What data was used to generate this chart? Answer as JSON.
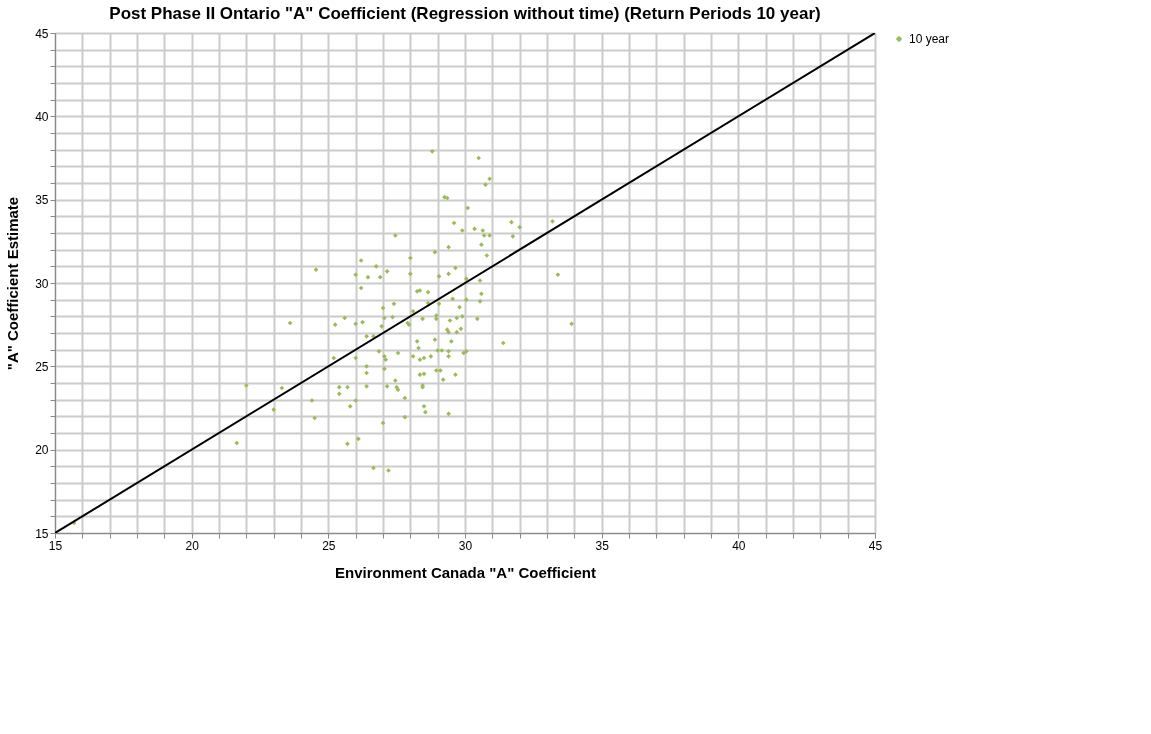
{
  "chart_data": {
    "type": "scatter",
    "title": "Post Phase II Ontario \"A\" Coefficient (Regression without time) (Return Periods 10 year)",
    "xlabel": "Environment Canada \"A\" Coefficient",
    "ylabel": "\"A\" Coefficient Estimate",
    "xlim": [
      15,
      45
    ],
    "ylim": [
      15,
      45
    ],
    "xticks": [
      15,
      {
        "value": 16,
        "label": null
      },
      {
        "value": 17,
        "label": null
      },
      {
        "value": 18,
        "label": null
      },
      {
        "value": 19,
        "label": null
      },
      20,
      {
        "value": 21,
        "label": null
      },
      {
        "value": 22,
        "label": null
      },
      {
        "value": 23,
        "label": null
      },
      {
        "value": 24,
        "label": null
      },
      25,
      {
        "value": 26,
        "label": null
      },
      {
        "value": 27,
        "label": null
      },
      {
        "value": 28,
        "label": null
      },
      {
        "value": 29,
        "label": null
      },
      30,
      {
        "value": 31,
        "label": null
      },
      {
        "value": 32,
        "label": null
      },
      {
        "value": 33,
        "label": null
      },
      {
        "value": 34,
        "label": null
      },
      35,
      {
        "value": 36,
        "label": null
      },
      {
        "value": 37,
        "label": null
      },
      {
        "value": 38,
        "label": null
      },
      {
        "value": 39,
        "label": null
      },
      40,
      {
        "value": 41,
        "label": null
      },
      {
        "value": 42,
        "label": null
      },
      {
        "value": 43,
        "label": null
      },
      {
        "value": 44,
        "label": null
      },
      45
    ],
    "yticks": [
      15,
      {
        "value": 16,
        "label": null
      },
      {
        "value": 17,
        "label": null
      },
      {
        "value": 18,
        "label": null
      },
      {
        "value": 19,
        "label": null
      },
      20,
      {
        "value": 21,
        "label": null
      },
      {
        "value": 22,
        "label": null
      },
      {
        "value": 23,
        "label": null
      },
      {
        "value": 24,
        "label": null
      },
      25,
      {
        "value": 26,
        "label": null
      },
      {
        "value": 27,
        "label": null
      },
      {
        "value": 28,
        "label": null
      },
      {
        "value": 29,
        "label": null
      },
      30,
      {
        "value": 31,
        "label": null
      },
      {
        "value": 32,
        "label": null
      },
      {
        "value": 33,
        "label": null
      },
      {
        "value": 34,
        "label": null
      },
      35,
      {
        "value": 36,
        "label": null
      },
      {
        "value": 37,
        "label": null
      },
      {
        "value": 38,
        "label": null
      },
      {
        "value": 39,
        "label": null
      },
      40,
      {
        "value": 41,
        "label": null
      },
      {
        "value": 42,
        "label": null
      },
      {
        "value": 43,
        "label": null
      },
      {
        "value": 44,
        "label": null
      },
      45
    ],
    "grid": true,
    "legend": "right",
    "marker": "diamond",
    "series": [
      {
        "name": "10 year",
        "color": "#9bbb59",
        "x": [
          15.7,
          21.65,
          22.0,
          23.0,
          23.3,
          24.4,
          24.5,
          25.2,
          25.4,
          25.7,
          25.4,
          26.0,
          26.4,
          25.8,
          26.0,
          25.7,
          26.1,
          26.65,
          27.2,
          26.85,
          27.05,
          27.1,
          27.55,
          26.4,
          26.4,
          27.05,
          27.45,
          27.15,
          27.5,
          27.55,
          27.8,
          26.4,
          27.0,
          27.8,
          26.65,
          28.25,
          28.9,
          28.3,
          28.1,
          28.35,
          28.5,
          28.75,
          29.0,
          29.15,
          29.4,
          29.4,
          29.5,
          29.4,
          29.7,
          29.95,
          30.05,
          28.35,
          28.5,
          28.95,
          29.1,
          29.65,
          29.2,
          28.45,
          28.45,
          28.5,
          28.55,
          29.4,
          31.4,
          28.8,
          30.5,
          30.9,
          30.75,
          29.25,
          29.35,
          30.1,
          29.6,
          29.9,
          30.35,
          30.65,
          30.7,
          30.9,
          31.7,
          32.0,
          31.75,
          33.2,
          27.45,
          30.6,
          29.4,
          28.9,
          30.8,
          26.2,
          28.0,
          26.75,
          27.15,
          24.55,
          26.0,
          26.45,
          26.9,
          28.0,
          29.05,
          29.4,
          29.65,
          30.55,
          30.05,
          33.4,
          26.2,
          28.25,
          28.35,
          28.65,
          30.6,
          30.55,
          28.65,
          29.05,
          29.55,
          30.05,
          29.8,
          27.4,
          27.0,
          28.1,
          25.6,
          25.25,
          23.6,
          26.0,
          26.25,
          27.05,
          27.35,
          27.9,
          27.95,
          28.45,
          28.95,
          28.95,
          29.45,
          29.7,
          29.9,
          30.45,
          33.9,
          29.35,
          29.85,
          26.95
        ],
        "values": [
          15.6,
          20.4,
          23.85,
          22.4,
          23.7,
          22.95,
          21.9,
          25.5,
          23.75,
          23.75,
          23.35,
          25.5,
          26.8,
          22.6,
          22.95,
          20.35,
          20.65,
          18.9,
          18.75,
          25.9,
          25.6,
          25.4,
          25.8,
          25.0,
          24.6,
          24.85,
          24.15,
          23.8,
          23.75,
          23.6,
          23.1,
          23.8,
          21.6,
          21.95,
          26.8,
          26.5,
          26.6,
          26.1,
          25.6,
          25.4,
          25.5,
          25.6,
          25.95,
          25.95,
          25.9,
          25.6,
          26.5,
          27.05,
          27.05,
          25.8,
          25.9,
          24.5,
          24.55,
          24.75,
          24.75,
          24.5,
          24.2,
          23.85,
          23.75,
          22.6,
          22.25,
          22.15,
          26.4,
          37.9,
          37.5,
          36.25,
          35.9,
          35.15,
          35.1,
          34.5,
          33.6,
          33.15,
          33.25,
          33.15,
          32.85,
          32.85,
          33.65,
          33.35,
          32.8,
          33.7,
          32.85,
          32.3,
          32.15,
          31.85,
          31.65,
          31.35,
          31.5,
          31.0,
          30.7,
          30.8,
          30.5,
          30.35,
          30.35,
          30.55,
          30.4,
          30.55,
          30.9,
          30.15,
          30.25,
          30.5,
          29.7,
          29.5,
          29.55,
          29.45,
          29.35,
          28.9,
          28.8,
          28.75,
          29.05,
          29.0,
          28.55,
          28.75,
          28.5,
          28.3,
          27.9,
          27.5,
          27.6,
          27.55,
          27.65,
          27.9,
          27.95,
          27.6,
          27.5,
          27.85,
          28.05,
          27.85,
          27.75,
          27.9,
          28.0,
          27.85,
          27.55,
          27.2,
          27.25,
          27.4
        ]
      },
      {
        "type": "line",
        "marker": "none",
        "color": "#000000",
        "x": [
          15,
          45
        ],
        "values": [
          15,
          45
        ]
      }
    ]
  }
}
